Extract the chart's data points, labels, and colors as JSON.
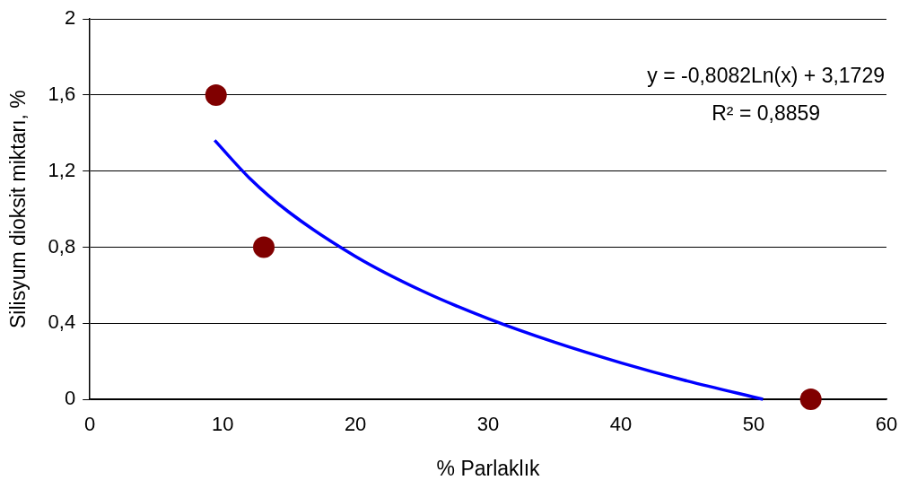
{
  "chart_data": {
    "type": "scatter",
    "xlabel": "% Parlaklık",
    "ylabel": "Silisyum dioksit miktarı, %",
    "xlim": [
      0,
      60
    ],
    "xticks": [
      0,
      10,
      20,
      30,
      40,
      50,
      60
    ],
    "ylim": [
      0,
      2
    ],
    "yticks": [
      0,
      {
        "value": 0.4,
        "label": "0,4"
      },
      {
        "value": 0.8,
        "label": "0,8"
      },
      {
        "value": 1.2,
        "label": "1,2"
      },
      {
        "value": 1.6,
        "label": "1,6"
      },
      2
    ],
    "grid": "y",
    "legend": false,
    "series": [
      {
        "type": "scatter",
        "color": "#800000",
        "marker": "circle",
        "x": [
          9.5,
          13.1,
          54.3
        ],
        "values": [
          1.6,
          0.8,
          0
        ]
      },
      {
        "type": "line",
        "color": "#0000ff",
        "marker": "none",
        "line_style": "solid",
        "x": [
          9.4,
          12,
          15,
          20,
          25,
          30,
          35,
          40,
          45,
          50.7
        ],
        "values": [
          1.362,
          1.165,
          0.984,
          0.752,
          0.571,
          0.424,
          0.3,
          0.192,
          0.096,
          0
        ]
      }
    ],
    "annotations": [
      "y = -0,8082Ln(x) + 3,1729",
      "R² = 0,8859"
    ]
  }
}
